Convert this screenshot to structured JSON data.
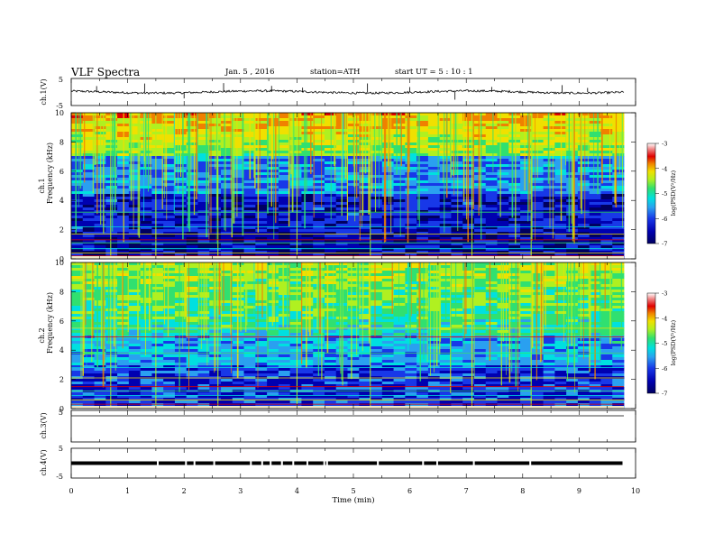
{
  "header": {
    "title": "VLF  Spectra",
    "date": "Jan. 5  , 2016",
    "station": "station=ATH",
    "start": "start  UT  =   5  : 10 : 1"
  },
  "chart_data": {
    "type": "heatmap",
    "x_axis": {
      "label": "Time  (min)",
      "range": [
        0,
        10
      ],
      "ticks": [
        "0",
        "1",
        "2",
        "3",
        "4",
        "5",
        "6",
        "7",
        "8",
        "9",
        "10"
      ]
    },
    "panels": [
      {
        "id": "ch1",
        "kind": "waveform",
        "ylabel": "ch.1(V)",
        "ylim": [
          -5,
          5
        ],
        "yticks": [
          "5",
          "-5"
        ],
        "baseline": 0
      },
      {
        "id": "ch1-spectrogram",
        "kind": "spectrogram",
        "channel_label": "ch.1",
        "ylabel": "Frequency  (kHz)",
        "ylim": [
          0,
          10
        ],
        "yticks": [
          "0",
          "2",
          "4",
          "6",
          "8",
          "10"
        ],
        "colorbar": {
          "label": "log(PSD(V²/Hz)",
          "range": [
            -7,
            -3
          ],
          "ticks": [
            "-3",
            "-4",
            "-5",
            "-6",
            "-7"
          ]
        }
      },
      {
        "id": "ch2-spectrogram",
        "kind": "spectrogram",
        "channel_label": "ch.2",
        "ylabel": "Frequency  (kHz)",
        "ylim": [
          0,
          10
        ],
        "yticks": [
          "0",
          "2",
          "4",
          "6",
          "8",
          "10"
        ],
        "colorbar": {
          "label": "log(PSD(V²/Hz)",
          "range": [
            -7,
            -3
          ],
          "ticks": [
            "-3",
            "-4",
            "-5",
            "-6",
            "-7"
          ]
        }
      },
      {
        "id": "ch3",
        "kind": "waveform",
        "ylabel": "ch.3(V)",
        "ylim": [
          -5,
          5
        ],
        "yticks": [
          "5"
        ],
        "baseline": 0
      },
      {
        "id": "ch4",
        "kind": "waveform",
        "ylabel": "ch.4(V)",
        "ylim": [
          -5,
          5
        ],
        "yticks": [
          "5",
          "-5"
        ],
        "baseline": 0
      }
    ],
    "colors": {
      "colormap": [
        "#000060",
        "#0000b0",
        "#1838e8",
        "#2aa0f0",
        "#00e0e0",
        "#30e070",
        "#b0f020",
        "#f0e000",
        "#f08000",
        "#e00000",
        "#f08080",
        "#ffffff"
      ],
      "trace": "#000000"
    }
  }
}
